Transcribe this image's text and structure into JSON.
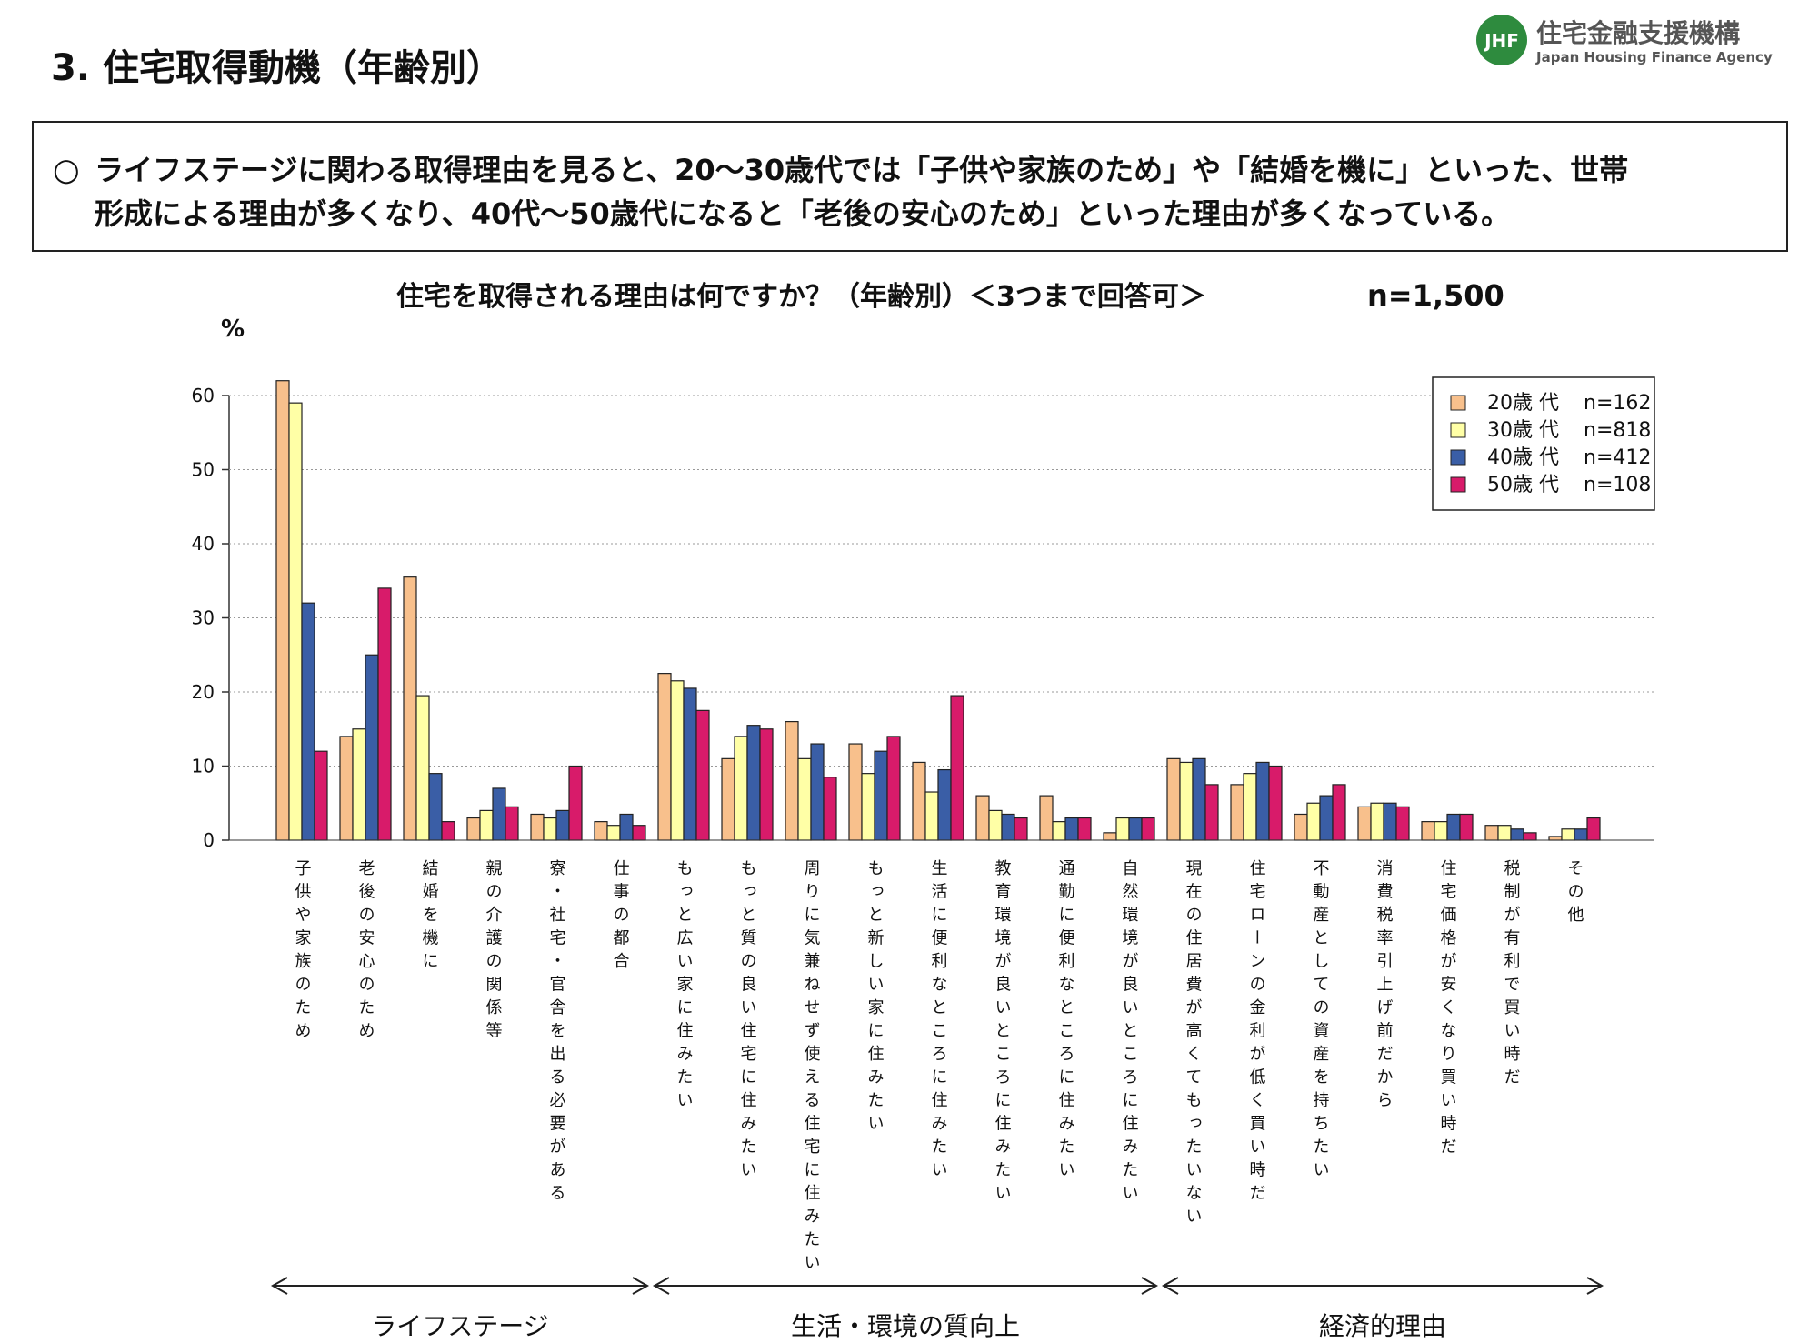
{
  "page_title": "3. 住宅取得動機（年齢別）",
  "logo": {
    "mark": "JHF",
    "name": "住宅金融支援機構",
    "name_en": "Japan Housing Finance Agency"
  },
  "summary": {
    "bullet": "○",
    "lines": [
      "ライフステージに関わる取得理由を見ると、20～30歳代では「子供や家族のため」や「結婚を機に」といった、世帯",
      "形成による理由が多くなり、40代～50歳代になると「老後の安心のため」といった理由が多くなっている。"
    ]
  },
  "chart_data": {
    "type": "bar",
    "title": "住宅を取得される理由は何ですか？（年齢別）＜3つまで回答可＞",
    "n_total": "n=1,500",
    "y_label": "%",
    "categories": [
      "子供や家族のため",
      "老後の安心のため",
      "結婚を機に",
      "親の介護の関係等",
      "寮・社宅・官舎を出る必要がある",
      "仕事の都合",
      "もっと広い家に住みたい",
      "もっと質の良い住宅に住みたい",
      "周りに気兼ねせず使える住宅に住みたい",
      "もっと新しい家に住みたい",
      "生活に便利なところに住みたい",
      "教育環境が良いところに住みたい",
      "通勤に便利なところに住みたい",
      "自然環境が良いところに住みたい",
      "現在の住居費が高くてもったいない",
      "住宅ローンの金利が低く買い時だ",
      "不動産としての資産を持ちたい",
      "消費税率引上げ前だから",
      "住宅価格が安くなり買い時だ",
      "税制が有利で買い時だ",
      "その他"
    ],
    "series": [
      {
        "name": "20歳 代",
        "n": "n=162",
        "color": "#f8c08c",
        "values": [
          62,
          14,
          35.5,
          3,
          3.5,
          2.5,
          22.5,
          11,
          16,
          13,
          10.5,
          6,
          6,
          1,
          11,
          7.5,
          3.5,
          4.5,
          2.5,
          2,
          0.5
        ]
      },
      {
        "name": "30歳 代",
        "n": "n=818",
        "color": "#ffffa6",
        "values": [
          59,
          15,
          19.5,
          4,
          3,
          2,
          21.5,
          14,
          11,
          9,
          6.5,
          4,
          2.5,
          3,
          10.5,
          9,
          5,
          5,
          2.5,
          2,
          1.5
        ]
      },
      {
        "name": "40歳 代",
        "n": "n=412",
        "color": "#3a5ea6",
        "values": [
          32,
          25,
          9,
          7,
          4,
          3.5,
          20.5,
          15.5,
          13,
          12,
          9.5,
          3.5,
          3,
          3,
          11,
          10.5,
          6,
          5,
          3.5,
          1.5,
          1.5
        ]
      },
      {
        "name": "50歳 代",
        "n": "n=108",
        "color": "#d81b6a",
        "values": [
          12,
          34,
          2.5,
          4.5,
          10,
          2,
          17.5,
          15,
          8.5,
          14,
          19.5,
          3,
          3,
          3,
          7.5,
          10,
          7.5,
          4.5,
          3.5,
          1,
          3
        ]
      }
    ],
    "groups": [
      {
        "label": "ライフステージ",
        "from": 0,
        "to": 5
      },
      {
        "label": "生活・環境の質向上",
        "from": 6,
        "to": 13
      },
      {
        "label": "経済的理由",
        "from": 14,
        "to": 20
      }
    ],
    "ylim": [
      0,
      60
    ],
    "yticks": [
      0,
      10,
      20,
      30,
      40,
      50,
      60
    ],
    "grid": true,
    "legend": "upper right"
  }
}
